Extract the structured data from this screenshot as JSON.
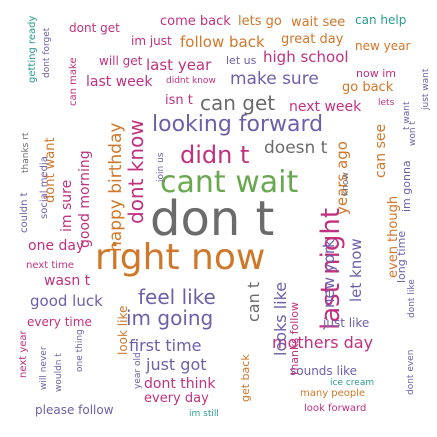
{
  "palette": {
    "gray": "#6b6b6b",
    "purple": "#6f5fa8",
    "teal": "#2a9d8f",
    "green": "#6aa84f",
    "orange": "#d0772a",
    "magenta": "#c0327f"
  },
  "words": [
    {
      "text": "don t",
      "color": "#6b6b6b"
    },
    {
      "text": "right now",
      "color": "#d0772a"
    },
    {
      "text": "cant wait",
      "color": "#6aa84f"
    },
    {
      "text": "last night",
      "color": "#c0327f"
    },
    {
      "text": "didn t",
      "color": "#c0327f"
    },
    {
      "text": "looking forward",
      "color": "#6f5fa8"
    },
    {
      "text": "dont know",
      "color": "#c0327f"
    },
    {
      "text": "feel like",
      "color": "#6f5fa8"
    },
    {
      "text": "im going",
      "color": "#6f5fa8"
    },
    {
      "text": "happy birthday",
      "color": "#d0772a"
    },
    {
      "text": "can get",
      "color": "#6b6b6b"
    },
    {
      "text": "make sure",
      "color": "#6f5fa8"
    },
    {
      "text": "doesn t",
      "color": "#6b6b6b"
    },
    {
      "text": "new york",
      "color": "#6f5fa8"
    },
    {
      "text": "let know",
      "color": "#6f5fa8"
    },
    {
      "text": "years ago",
      "color": "#d0772a"
    },
    {
      "text": "can see",
      "color": "#d0772a"
    },
    {
      "text": "even though",
      "color": "#d0772a"
    },
    {
      "text": "first time",
      "color": "#6f5fa8"
    },
    {
      "text": "just got",
      "color": "#6f5fa8"
    },
    {
      "text": "mothers day",
      "color": "#c0327f"
    },
    {
      "text": "good luck",
      "color": "#6f5fa8"
    },
    {
      "text": "wasn t",
      "color": "#c0327f"
    },
    {
      "text": "one day",
      "color": "#c0327f"
    },
    {
      "text": "good morning",
      "color": "#c0327f"
    },
    {
      "text": "im sure",
      "color": "#c0327f"
    },
    {
      "text": "dont want",
      "color": "#d0772a"
    },
    {
      "text": "next week",
      "color": "#c0327f"
    },
    {
      "text": "last year",
      "color": "#c0327f"
    },
    {
      "text": "last week",
      "color": "#c0327f"
    },
    {
      "text": "high school",
      "color": "#c0327f"
    },
    {
      "text": "follow back",
      "color": "#d0772a"
    },
    {
      "text": "great day",
      "color": "#d0772a"
    },
    {
      "text": "new year",
      "color": "#d0772a"
    },
    {
      "text": "come back",
      "color": "#c0327f"
    },
    {
      "text": "lets go",
      "color": "#d0772a"
    },
    {
      "text": "wait see",
      "color": "#d0772a"
    },
    {
      "text": "can help",
      "color": "#2a9d8f"
    },
    {
      "text": "dont get",
      "color": "#c0327f"
    },
    {
      "text": "im just",
      "color": "#c0327f"
    },
    {
      "text": "will get",
      "color": "#c0327f"
    },
    {
      "text": "let us",
      "color": "#6f5fa8"
    },
    {
      "text": "didnt know",
      "color": "#c0327f"
    },
    {
      "text": "isn t",
      "color": "#c0327f"
    },
    {
      "text": "go back",
      "color": "#d0772a"
    },
    {
      "text": "now im",
      "color": "#c0327f"
    },
    {
      "text": "just want",
      "color": "#6f5fa8"
    },
    {
      "text": "lets",
      "color": "#c0327f"
    },
    {
      "text": "t want",
      "color": "#6f5fa8"
    },
    {
      "text": "won t",
      "color": "#6f5fa8"
    },
    {
      "text": "im gonna",
      "color": "#6f5fa8"
    },
    {
      "text": "long time",
      "color": "#6f5fa8"
    },
    {
      "text": "dont like",
      "color": "#6f5fa8"
    },
    {
      "text": "just like",
      "color": "#6f5fa8"
    },
    {
      "text": "sounds like",
      "color": "#6f5fa8"
    },
    {
      "text": "ice cream",
      "color": "#2a9d8f"
    },
    {
      "text": "many people",
      "color": "#d0772a"
    },
    {
      "text": "look forward",
      "color": "#c0327f"
    },
    {
      "text": "dont even",
      "color": "#6f5fa8"
    },
    {
      "text": "dont think",
      "color": "#c0327f"
    },
    {
      "text": "every day",
      "color": "#c0327f"
    },
    {
      "text": "im still",
      "color": "#2a9d8f"
    },
    {
      "text": "get back",
      "color": "#d0772a"
    },
    {
      "text": "year old",
      "color": "#6f5fa8"
    },
    {
      "text": "look like",
      "color": "#d0772a"
    },
    {
      "text": "can t",
      "color": "#6b6b6b"
    },
    {
      "text": "looks like",
      "color": "#6f5fa8"
    },
    {
      "text": "thanks follow",
      "color": "#c0327f"
    },
    {
      "text": "please follow",
      "color": "#6f5fa8"
    },
    {
      "text": "every time",
      "color": "#c0327f"
    },
    {
      "text": "next time",
      "color": "#c0327f"
    },
    {
      "text": "next year",
      "color": "#c0327f"
    },
    {
      "text": "will never",
      "color": "#6f5fa8"
    },
    {
      "text": "wouldn t",
      "color": "#6f5fa8"
    },
    {
      "text": "one thing",
      "color": "#6f5fa8"
    },
    {
      "text": "couldn t",
      "color": "#6f5fa8"
    },
    {
      "text": "social media",
      "color": "#6f5fa8"
    },
    {
      "text": "thanks rt",
      "color": "#6b6b6b"
    },
    {
      "text": "can make",
      "color": "#c0327f"
    },
    {
      "text": "getting ready",
      "color": "#2a9d8f"
    },
    {
      "text": "dont forget",
      "color": "#6f5fa8"
    },
    {
      "text": "join us",
      "color": "#6f5fa8"
    },
    {
      "text": "know",
      "color": "#6b6b6b"
    }
  ]
}
